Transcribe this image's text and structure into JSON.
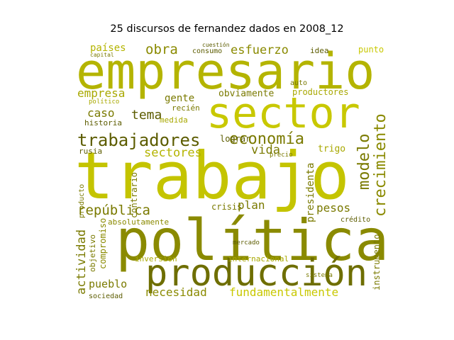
{
  "title": "25 discursos de fernandez dados en 2008_12",
  "colors": {
    "bright": "#c8c800",
    "mid": "#a8a800",
    "olive": "#7a7a00",
    "dark": "#5c5c00"
  },
  "words": [
    "empresario",
    "sector",
    "trabajo",
    "política",
    "producción",
    "trabajadores",
    "economía",
    "república",
    "sectores",
    "modelo",
    "crecimiento",
    "pesos",
    "esfuerzo",
    "obra",
    "países",
    "empresa",
    "tema",
    "caso",
    "gente",
    "obviamente",
    "productores",
    "vida",
    "plan",
    "crisis",
    "lograr",
    "actividad",
    "pueblo",
    "necesidad",
    "fundamentalmente",
    "inversión",
    "internacional",
    "instrumento",
    "presidenta",
    "trigo",
    "historia",
    "rusia",
    "absolutamente",
    "compromiso",
    "objetivo",
    "sociedad",
    "producto",
    "contrario",
    "idea",
    "punto",
    "consumo",
    "medida",
    "recién",
    "auto",
    "crédito",
    "mercado",
    "sistema",
    "capital",
    "político",
    "cuestión",
    "precio"
  ]
}
